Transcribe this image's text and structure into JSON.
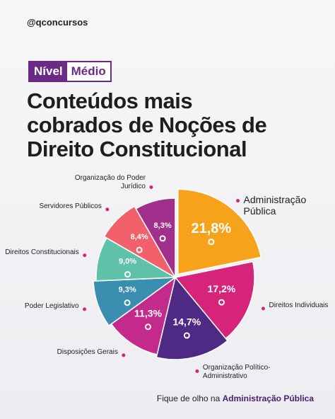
{
  "handle": "@qconcursos",
  "badge": {
    "level_label": "Nível",
    "level": "Médio"
  },
  "chart_data": {
    "type": "pie",
    "title": "Conteúdos mais cobrados de Noções de Direito Constitucional",
    "categories": [
      "Administração Pública",
      "Direitos Individuais",
      "Organização Político-Administrativo",
      "Disposições Gerais",
      "Poder Legislativo",
      "Direitos Constitucionais",
      "Servidores Públicos",
      "Organização do Poder Jurídico"
    ],
    "values": [
      21.8,
      17.2,
      14.7,
      11.3,
      9.3,
      9.0,
      8.4,
      8.3
    ],
    "value_labels": [
      "21,8%",
      "17,2%",
      "14,7%",
      "11,3%",
      "9,3%",
      "9,0%",
      "8,4%",
      "8,3%"
    ],
    "colors": [
      "#f7a21b",
      "#d6247a",
      "#4e2a84",
      "#c42a8c",
      "#3a8fb0",
      "#5fc2a8",
      "#f2606b",
      "#a0308c"
    ]
  },
  "footer": {
    "text": "Fique de olho na",
    "highlight": "Administração Pública"
  }
}
